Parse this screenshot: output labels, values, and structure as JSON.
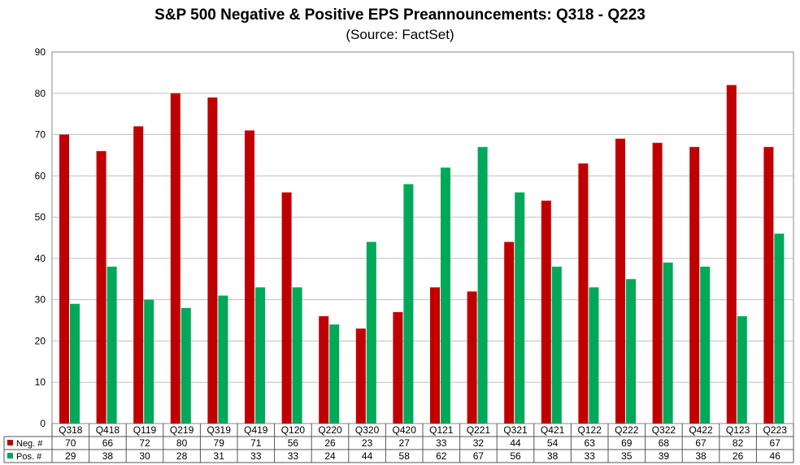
{
  "chart_data": {
    "type": "bar",
    "title": "S&P 500 Negative & Positive EPS Preannouncements: Q318 - Q223",
    "subtitle": "(Source: FactSet)",
    "categories": [
      "Q318",
      "Q418",
      "Q119",
      "Q219",
      "Q319",
      "Q419",
      "Q120",
      "Q220",
      "Q320",
      "Q420",
      "Q121",
      "Q221",
      "Q321",
      "Q421",
      "Q122",
      "Q222",
      "Q322",
      "Q422",
      "Q123",
      "Q223"
    ],
    "series": [
      {
        "name": "Neg. #",
        "color": "#c00000",
        "values": [
          70,
          66,
          72,
          80,
          79,
          71,
          56,
          26,
          23,
          27,
          33,
          32,
          44,
          54,
          63,
          69,
          68,
          67,
          82,
          67
        ]
      },
      {
        "name": "Pos. #",
        "color": "#00a85a",
        "values": [
          29,
          38,
          30,
          28,
          31,
          33,
          33,
          24,
          44,
          58,
          62,
          67,
          56,
          38,
          33,
          35,
          39,
          38,
          26,
          46
        ]
      }
    ],
    "ylim": [
      0,
      90
    ],
    "yticks": [
      0,
      10,
      20,
      30,
      40,
      50,
      60,
      70,
      80,
      90
    ],
    "grid": true,
    "legend": "data-table"
  }
}
